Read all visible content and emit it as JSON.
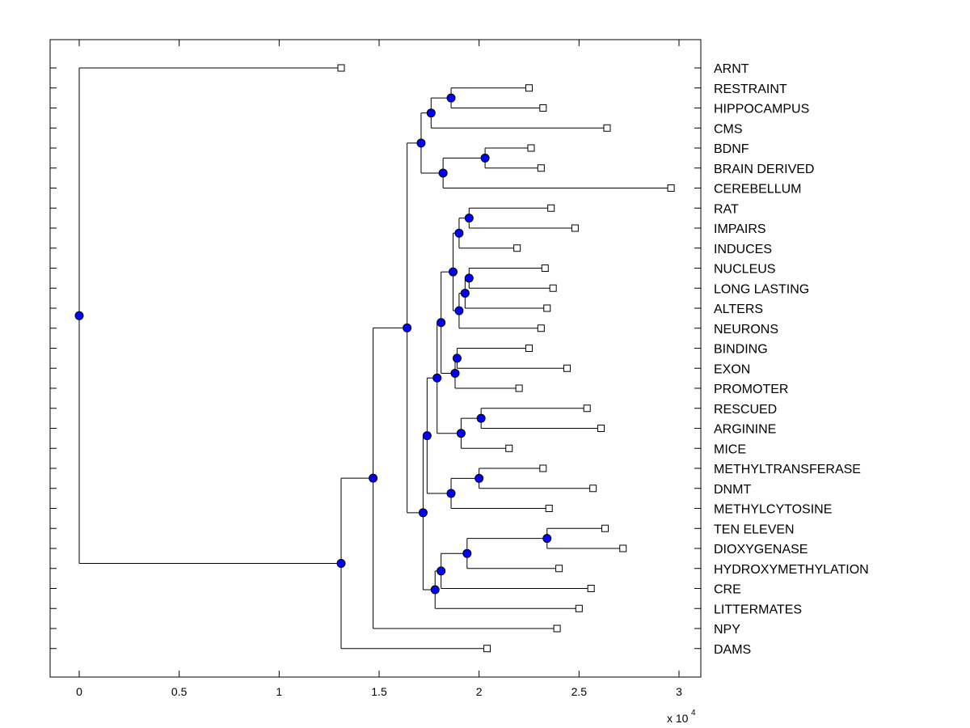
{
  "chart_data": {
    "type": "dendrogram",
    "orientation": "horizontal",
    "title": "",
    "xlabel": "",
    "ylabel": "",
    "x_scale_label": "x 10",
    "x_scale_exponent": "4",
    "xlim": [
      -0.15,
      3.1
    ],
    "x_ticks": [
      0,
      0.5,
      1,
      1.5,
      2,
      2.5,
      3
    ],
    "x_tick_labels": [
      "0",
      "0.5",
      "1",
      "1.5",
      "2",
      "2.5",
      "3"
    ],
    "leaf_marker_color": "#ffffff",
    "node_marker_color": "#0000ff",
    "leaves": [
      {
        "label": "ARNT",
        "value": 1.31
      },
      {
        "label": "RESTRAINT",
        "value": 2.25
      },
      {
        "label": "HIPPOCAMPUS",
        "value": 2.32
      },
      {
        "label": "CMS",
        "value": 2.64
      },
      {
        "label": "BDNF",
        "value": 2.26
      },
      {
        "label": "BRAIN DERIVED",
        "value": 2.31
      },
      {
        "label": "CEREBELLUM",
        "value": 2.96
      },
      {
        "label": "RAT",
        "value": 2.36
      },
      {
        "label": "IMPAIRS",
        "value": 2.48
      },
      {
        "label": "INDUCES",
        "value": 2.19
      },
      {
        "label": "NUCLEUS",
        "value": 2.33
      },
      {
        "label": "LONG LASTING",
        "value": 2.37
      },
      {
        "label": "ALTERS",
        "value": 2.34
      },
      {
        "label": "NEURONS",
        "value": 2.31
      },
      {
        "label": "BINDING",
        "value": 2.25
      },
      {
        "label": "EXON",
        "value": 2.44
      },
      {
        "label": "PROMOTER",
        "value": 2.2
      },
      {
        "label": "RESCUED",
        "value": 2.54
      },
      {
        "label": "ARGININE",
        "value": 2.61
      },
      {
        "label": "MICE",
        "value": 2.15
      },
      {
        "label": "METHYLTRANSFERASE",
        "value": 2.32
      },
      {
        "label": "DNMT",
        "value": 2.57
      },
      {
        "label": "METHYLCYTOSINE",
        "value": 2.35
      },
      {
        "label": "TEN ELEVEN",
        "value": 2.63
      },
      {
        "label": "DIOXYGENASE",
        "value": 2.72
      },
      {
        "label": "HYDROXYMETHYLATION",
        "value": 2.4
      },
      {
        "label": "CRE",
        "value": 2.56
      },
      {
        "label": "LITTERMATES",
        "value": 2.5
      },
      {
        "label": "NPY",
        "value": 2.39
      },
      {
        "label": "DAMS",
        "value": 2.04
      }
    ],
    "merges": [
      {
        "id": "n1",
        "value": 1.86,
        "children": [
          "RESTRAINT",
          "HIPPOCAMPUS"
        ]
      },
      {
        "id": "n2",
        "value": 1.76,
        "children": [
          "n1",
          "CMS"
        ]
      },
      {
        "id": "n3",
        "value": 2.03,
        "children": [
          "BDNF",
          "BRAIN DERIVED"
        ]
      },
      {
        "id": "n4",
        "value": 1.82,
        "children": [
          "n3",
          "CEREBELLUM"
        ]
      },
      {
        "id": "n5",
        "value": 1.71,
        "children": [
          "n2",
          "n4"
        ]
      },
      {
        "id": "n6",
        "value": 1.95,
        "children": [
          "RAT",
          "IMPAIRS"
        ]
      },
      {
        "id": "n7",
        "value": 1.9,
        "children": [
          "n6",
          "INDUCES"
        ]
      },
      {
        "id": "n8",
        "value": 1.95,
        "children": [
          "NUCLEUS",
          "LONG LASTING"
        ]
      },
      {
        "id": "n9",
        "value": 1.93,
        "children": [
          "n8",
          "ALTERS"
        ]
      },
      {
        "id": "n10",
        "value": 1.9,
        "children": [
          "n9",
          "NEURONS"
        ]
      },
      {
        "id": "n11",
        "value": 1.87,
        "children": [
          "n7",
          "n10"
        ]
      },
      {
        "id": "n12",
        "value": 1.89,
        "children": [
          "BINDING",
          "EXON"
        ]
      },
      {
        "id": "n13",
        "value": 1.88,
        "children": [
          "n12",
          "PROMOTER"
        ]
      },
      {
        "id": "n14",
        "value": 1.81,
        "children": [
          "n11",
          "n13"
        ]
      },
      {
        "id": "n15",
        "value": 2.01,
        "children": [
          "RESCUED",
          "ARGININE"
        ]
      },
      {
        "id": "n16",
        "value": 1.91,
        "children": [
          "n15",
          "MICE"
        ]
      },
      {
        "id": "n17",
        "value": 1.79,
        "children": [
          "n14",
          "n16"
        ]
      },
      {
        "id": "n18",
        "value": 2.0,
        "children": [
          "METHYLTRANSFERASE",
          "DNMT"
        ]
      },
      {
        "id": "n19",
        "value": 1.86,
        "children": [
          "n18",
          "METHYLCYTOSINE"
        ]
      },
      {
        "id": "n20",
        "value": 1.74,
        "children": [
          "n17",
          "n19"
        ]
      },
      {
        "id": "n21",
        "value": 2.34,
        "children": [
          "TEN ELEVEN",
          "DIOXYGENASE"
        ]
      },
      {
        "id": "n22",
        "value": 1.94,
        "children": [
          "n21",
          "HYDROXYMETHYLATION"
        ]
      },
      {
        "id": "n23",
        "value": 1.81,
        "children": [
          "n22",
          "CRE"
        ]
      },
      {
        "id": "n24",
        "value": 1.78,
        "children": [
          "n23",
          "LITTERMATES"
        ]
      },
      {
        "id": "n25",
        "value": 1.72,
        "children": [
          "n20",
          "n24"
        ]
      },
      {
        "id": "n26",
        "value": 1.64,
        "children": [
          "n5",
          "n25"
        ]
      },
      {
        "id": "n27",
        "value": 1.47,
        "children": [
          "n26",
          "NPY"
        ]
      },
      {
        "id": "n28",
        "value": 1.31,
        "children": [
          "n27",
          "DAMS"
        ]
      },
      {
        "id": "n29",
        "value": 0.0,
        "children": [
          "ARNT",
          "n28"
        ]
      }
    ]
  }
}
